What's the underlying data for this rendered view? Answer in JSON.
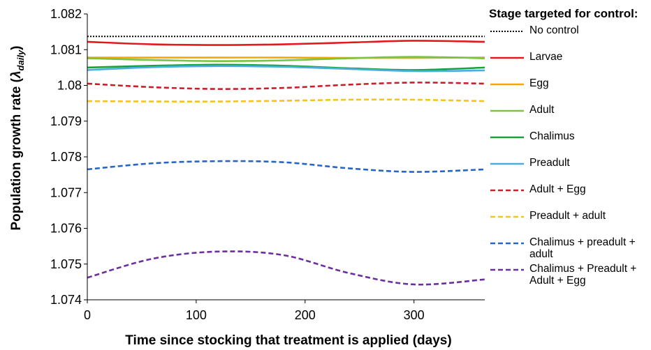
{
  "chart_data": {
    "type": "line",
    "xlabel": "Time since stocking that treatment is applied (days)",
    "ylabel_main": "Population growth rate (",
    "ylabel_symbol": "λ",
    "ylabel_sub": "daily",
    "ylabel_close": ")",
    "xlim": [
      0,
      365
    ],
    "ylim": [
      1.074,
      1.082
    ],
    "x_ticks": [
      0,
      100,
      200,
      300
    ],
    "x_tick_labels": [
      "0",
      "100",
      "200",
      "300"
    ],
    "y_ticks": [
      1.074,
      1.075,
      1.076,
      1.077,
      1.078,
      1.079,
      1.08,
      1.081,
      1.082
    ],
    "y_tick_labels": [
      "1.074",
      "1.075",
      "1.076",
      "1.077",
      "1.078",
      "1.079",
      "1.08",
      "1.081",
      "1.082"
    ],
    "grid": false,
    "legend_position": "right",
    "legend_title": "Stage targeted for control:",
    "series": [
      {
        "name": "No control",
        "color": "#000000",
        "dash": "dotted",
        "x": [
          0,
          60,
          120,
          180,
          240,
          300,
          365
        ],
        "y": [
          1.08137,
          1.08137,
          1.08137,
          1.08137,
          1.08137,
          1.08137,
          1.08137
        ]
      },
      {
        "name": "Larvae",
        "color": "#e31a1c",
        "dash": "solid",
        "x": [
          0,
          60,
          120,
          180,
          240,
          300,
          365
        ],
        "y": [
          1.08122,
          1.08115,
          1.08113,
          1.08115,
          1.0812,
          1.08125,
          1.08122
        ]
      },
      {
        "name": "Egg",
        "color": "#f5a800",
        "dash": "solid",
        "x": [
          0,
          60,
          120,
          180,
          240,
          300,
          365
        ],
        "y": [
          1.08078,
          1.08078,
          1.08078,
          1.08078,
          1.08077,
          1.08077,
          1.08078
        ]
      },
      {
        "name": "Adult",
        "color": "#7dc242",
        "dash": "solid",
        "x": [
          0,
          60,
          120,
          180,
          240,
          300,
          365
        ],
        "y": [
          1.08076,
          1.08071,
          1.08068,
          1.0807,
          1.08076,
          1.0808,
          1.08076
        ]
      },
      {
        "name": "Chalimus",
        "color": "#1aa13b",
        "dash": "solid",
        "x": [
          0,
          60,
          120,
          180,
          240,
          300,
          365
        ],
        "y": [
          1.0805,
          1.08055,
          1.08058,
          1.08055,
          1.08048,
          1.08043,
          1.0805
        ]
      },
      {
        "name": "Preadult",
        "color": "#4aaee0",
        "dash": "solid",
        "x": [
          0,
          60,
          120,
          180,
          240,
          300,
          365
        ],
        "y": [
          1.08043,
          1.08051,
          1.08054,
          1.08052,
          1.08046,
          1.0804,
          1.08042
        ]
      },
      {
        "name": "Adult + Egg",
        "color": "#c8202a",
        "dash": "dashed",
        "x": [
          0,
          60,
          120,
          180,
          240,
          300,
          365
        ],
        "y": [
          1.08005,
          1.07995,
          1.0799,
          1.07993,
          1.08002,
          1.08008,
          1.08005
        ]
      },
      {
        "name": "Preadult + adult",
        "color": "#f7c31a",
        "dash": "dashed",
        "x": [
          0,
          60,
          120,
          180,
          240,
          300,
          365
        ],
        "y": [
          1.07956,
          1.07955,
          1.07955,
          1.07957,
          1.0796,
          1.0796,
          1.07956
        ]
      },
      {
        "name": "Chalimus + preadult + adult",
        "color": "#2766c4",
        "dash": "dashed",
        "x": [
          0,
          60,
          120,
          180,
          240,
          300,
          365
        ],
        "y": [
          1.07765,
          1.07782,
          1.07788,
          1.07785,
          1.07768,
          1.07758,
          1.07765
        ]
      },
      {
        "name": "Chalimus + Preadult + Adult + Egg",
        "color": "#6b2fa0",
        "dash": "dashed",
        "x": [
          0,
          60,
          120,
          180,
          240,
          300,
          365
        ],
        "y": [
          1.07462,
          1.07515,
          1.07535,
          1.07525,
          1.07475,
          1.07443,
          1.07457
        ]
      }
    ]
  }
}
